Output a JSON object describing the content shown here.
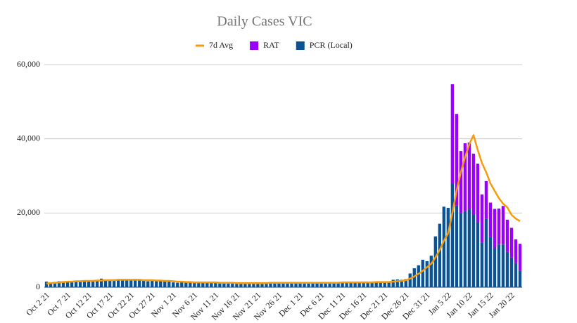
{
  "chart_data": {
    "type": "bar",
    "title": "Daily Cases VIC",
    "stacked": true,
    "categories": [
      "Oct 2 21",
      null,
      null,
      null,
      null,
      "Oct 7 21",
      null,
      null,
      null,
      null,
      "Oct 12 21",
      null,
      null,
      null,
      null,
      "Oct 17 21",
      null,
      null,
      null,
      null,
      "Oct 22 21",
      null,
      null,
      null,
      null,
      "Oct 27 21",
      null,
      null,
      null,
      null,
      "Nov 1 21",
      null,
      null,
      null,
      null,
      "Nov 6 21",
      null,
      null,
      null,
      null,
      "Nov 11 21",
      null,
      null,
      null,
      null,
      "Nov 16 21",
      null,
      null,
      null,
      null,
      "Nov 21 21",
      null,
      null,
      null,
      null,
      "Nov 26 21",
      null,
      null,
      null,
      null,
      "Dec 1 21",
      null,
      null,
      null,
      null,
      "Dec 6 21",
      null,
      null,
      null,
      null,
      "Dec 11 21",
      null,
      null,
      null,
      null,
      "Dec 16 21",
      null,
      null,
      null,
      null,
      "Dec 21 21",
      null,
      null,
      null,
      null,
      "Dec 26 21",
      null,
      null,
      null,
      null,
      "Dec 31 21",
      null,
      null,
      null,
      null,
      "Jan 5 22",
      null,
      null,
      null,
      null,
      "Jan 10 22",
      null,
      null,
      null,
      null,
      "Jan 15 22",
      null,
      null,
      null,
      null,
      "Jan 20 22",
      null,
      null
    ],
    "series": [
      {
        "name": "7d Avg",
        "type": "line",
        "color": "#f59b0c",
        "values": [
          1000,
          1100,
          1200,
          1300,
          1400,
          1500,
          1500,
          1600,
          1600,
          1700,
          1700,
          1700,
          1800,
          1800,
          1900,
          1900,
          1900,
          2000,
          2000,
          2000,
          2000,
          2000,
          2000,
          1900,
          1900,
          1900,
          1800,
          1800,
          1700,
          1700,
          1600,
          1500,
          1500,
          1400,
          1400,
          1300,
          1300,
          1300,
          1300,
          1300,
          1300,
          1200,
          1200,
          1200,
          1200,
          1100,
          1100,
          1100,
          1100,
          1100,
          1100,
          1100,
          1100,
          1200,
          1200,
          1200,
          1200,
          1200,
          1200,
          1200,
          1200,
          1200,
          1200,
          1200,
          1200,
          1200,
          1200,
          1200,
          1200,
          1200,
          1300,
          1300,
          1300,
          1300,
          1300,
          1300,
          1300,
          1300,
          1400,
          1400,
          1400,
          1400,
          1500,
          1600,
          1700,
          1900,
          2300,
          2900,
          3600,
          4400,
          5400,
          6300,
          8000,
          10000,
          12500,
          14500,
          20000,
          26000,
          31000,
          35000,
          38500,
          41000,
          37000,
          33500,
          31000,
          28000,
          26000,
          24000,
          22500,
          21500,
          19500,
          18500,
          17800
        ]
      },
      {
        "name": "RAT",
        "type": "bar",
        "color": "#9a00ff",
        "values": [
          null,
          null,
          null,
          null,
          null,
          null,
          null,
          null,
          null,
          null,
          null,
          null,
          null,
          null,
          null,
          null,
          null,
          null,
          null,
          null,
          null,
          null,
          null,
          null,
          null,
          null,
          null,
          null,
          null,
          null,
          null,
          null,
          null,
          null,
          null,
          null,
          null,
          null,
          null,
          null,
          null,
          null,
          null,
          null,
          null,
          null,
          null,
          null,
          null,
          null,
          null,
          null,
          null,
          null,
          null,
          null,
          null,
          null,
          null,
          null,
          null,
          null,
          null,
          null,
          null,
          null,
          null,
          null,
          null,
          null,
          null,
          null,
          null,
          null,
          null,
          null,
          null,
          null,
          null,
          null,
          null,
          null,
          null,
          null,
          null,
          null,
          null,
          null,
          null,
          null,
          null,
          null,
          null,
          null,
          null,
          null,
          26700,
          24700,
          16700,
          18300,
          18000,
          16500,
          15800,
          13000,
          10100,
          9300,
          10600,
          9700,
          10400,
          8700,
          8000,
          6400,
          7200
        ]
      },
      {
        "name": "PCR (Local)",
        "type": "bar",
        "color": "#0b5394",
        "values": [
          1500,
          1200,
          1400,
          1600,
          1500,
          1700,
          1600,
          1800,
          1700,
          1900,
          1800,
          1600,
          1900,
          2300,
          1900,
          1800,
          1900,
          2000,
          1800,
          1900,
          2100,
          2200,
          2000,
          1800,
          1600,
          1700,
          1900,
          1700,
          1600,
          1700,
          1300,
          1200,
          1400,
          1300,
          1300,
          1200,
          1300,
          1200,
          1300,
          1200,
          1300,
          1200,
          1200,
          1100,
          1100,
          1000,
          1100,
          1000,
          1100,
          1000,
          1100,
          1100,
          1200,
          1100,
          1200,
          1300,
          1200,
          1100,
          1200,
          1100,
          1200,
          1200,
          1300,
          1200,
          1200,
          1100,
          1200,
          1300,
          1200,
          1300,
          1300,
          1200,
          1300,
          1300,
          1400,
          1400,
          1300,
          1500,
          1400,
          1500,
          1600,
          1500,
          2000,
          2100,
          2000,
          2200,
          3700,
          5100,
          5900,
          7400,
          7000,
          8500,
          13700,
          17100,
          21700,
          21400,
          28000,
          22000,
          20000,
          20500,
          21000,
          19500,
          17500,
          12000,
          18500,
          13500,
          10500,
          11500,
          11500,
          9500,
          8000,
          6500,
          4500
        ]
      }
    ],
    "ylim": [
      0,
      60000
    ],
    "yticks": [
      0,
      {
        "value": 20000,
        "label": "20,000"
      },
      {
        "value": 40000,
        "label": "40,000"
      },
      {
        "value": 60000,
        "label": "60,000"
      }
    ],
    "grid": true,
    "legend": "top"
  }
}
